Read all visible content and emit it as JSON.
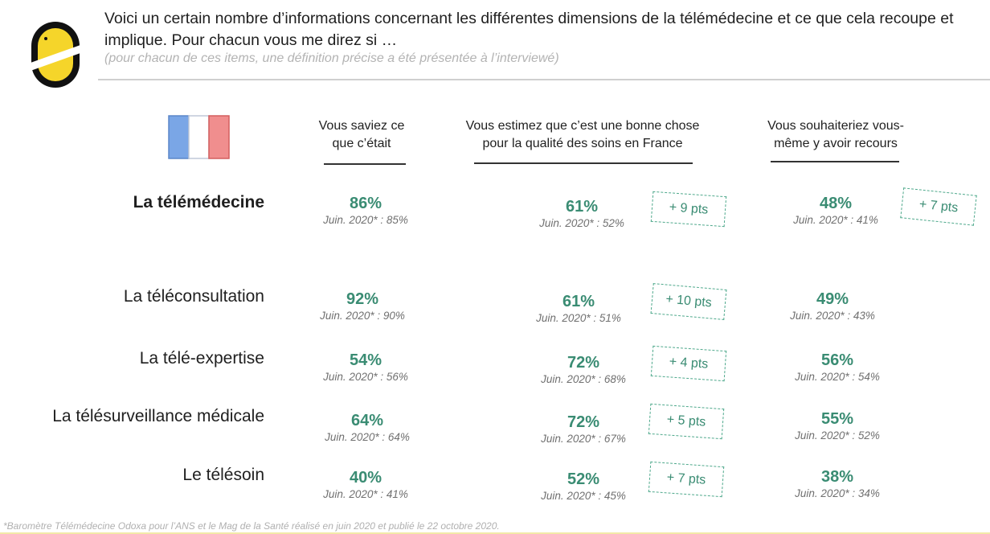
{
  "header": {
    "question": "Voici un certain nombre d’informations concernant les différentes dimensions de la télémédecine et ce que cela recoupe et implique. Pour chacun vous me direz si …",
    "note": "(pour chacun de ces items, une définition précise a été présentée à l’interviewé)"
  },
  "columns": [
    "Vous saviez ce que c’était",
    "Vous estimez que c’est une bonne chose pour la qualité des soins en France",
    "Vous souhaiteriez vous-même y avoir recours"
  ],
  "rows": [
    {
      "label": "La télémédecine",
      "values": [
        {
          "pct": "86%",
          "prev": "Juin. 2020* : 85%"
        },
        {
          "pct": "61%",
          "prev": "Juin. 2020* : 52%",
          "delta": "+ 9 pts"
        },
        {
          "pct": "48%",
          "prev": "Juin. 2020* : 41%",
          "delta": "+ 7 pts"
        }
      ]
    },
    {
      "label": "La téléconsultation",
      "values": [
        {
          "pct": "92%",
          "prev": "Juin. 2020* : 90%"
        },
        {
          "pct": "61%",
          "prev": "Juin. 2020* : 51%",
          "delta": "+ 10 pts"
        },
        {
          "pct": "49%",
          "prev": "Juin. 2020* : 43%"
        }
      ]
    },
    {
      "label": "La télé-expertise",
      "values": [
        {
          "pct": "54%",
          "prev": "Juin. 2020* : 56%"
        },
        {
          "pct": "72%",
          "prev": "Juin. 2020* : 68%",
          "delta": "+ 4 pts"
        },
        {
          "pct": "56%",
          "prev": "Juin. 2020* : 54%"
        }
      ]
    },
    {
      "label": "La télésurveillance médicale",
      "values": [
        {
          "pct": "64%",
          "prev": "Juin. 2020* : 64%"
        },
        {
          "pct": "72%",
          "prev": "Juin. 2020* : 67%",
          "delta": "+ 5 pts"
        },
        {
          "pct": "55%",
          "prev": "Juin. 2020* : 52%"
        }
      ]
    },
    {
      "label": "Le télésoin",
      "values": [
        {
          "pct": "40%",
          "prev": "Juin. 2020* : 41%"
        },
        {
          "pct": "52%",
          "prev": "Juin. 2020* : 45%",
          "delta": "+ 7 pts"
        },
        {
          "pct": "38%",
          "prev": "Juin. 2020* : 34%"
        }
      ]
    }
  ],
  "footnote": "*Baromètre Télémédecine Odoxa pour l’ANS et le Mag de la Santé réalisé en juin 2020 et publié le 22 octobre 2020.",
  "colors": {
    "accent_green": "#3a8c73",
    "logo_yellow": "#f5d52a",
    "flag_blue": "#7aa6e6",
    "flag_red": "#f08e8e"
  }
}
